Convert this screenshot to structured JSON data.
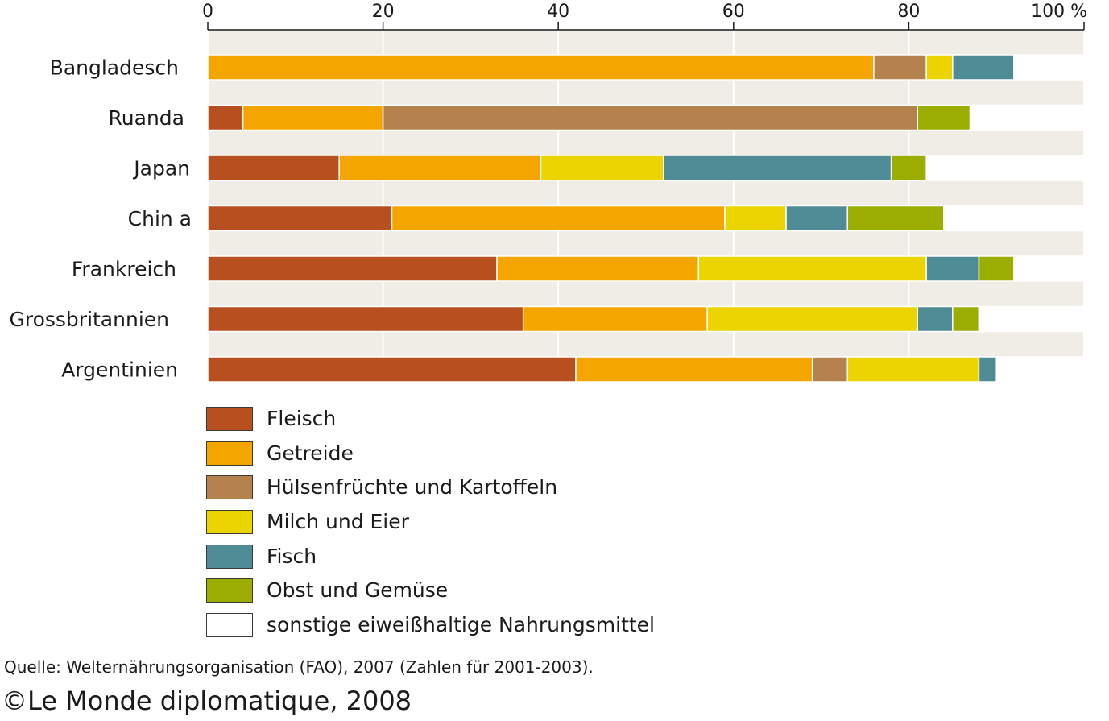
{
  "chart_data": {
    "type": "bar",
    "orientation": "horizontal",
    "stacked": true,
    "categories": [
      "Bangladesch",
      "Ruanda",
      "Japan",
      "Chin a",
      "Frankreich",
      "Grossbritannien",
      "Argentinien"
    ],
    "xlim": [
      0,
      100
    ],
    "xticks": [
      "0",
      "20",
      "40",
      "60",
      "80",
      "100 %"
    ],
    "series": [
      {
        "name": "Fleisch",
        "color": "#b84f1e",
        "values": [
          0,
          4,
          15,
          21,
          33,
          36,
          42
        ]
      },
      {
        "name": "Getreide",
        "color": "#f5a500",
        "values": [
          76,
          16,
          23,
          38,
          23,
          21,
          27
        ]
      },
      {
        "name": "Hülsenfrüchte und Kartoffeln",
        "color": "#b5824d",
        "values": [
          6,
          61,
          0,
          0,
          0,
          0,
          4
        ]
      },
      {
        "name": "Milch und Eier",
        "color": "#ecd400",
        "values": [
          3,
          0,
          14,
          7,
          26,
          24,
          15
        ]
      },
      {
        "name": "Fisch",
        "color": "#4f8b94",
        "values": [
          7,
          0,
          26,
          7,
          6,
          4,
          2
        ]
      },
      {
        "name": "Obst und Gemüse",
        "color": "#9aad00",
        "values": [
          0,
          6,
          4,
          11,
          4,
          3,
          0
        ]
      },
      {
        "name": "sonstige eiweißhaltige Nahrungsmittel",
        "color": "#ffffff",
        "values": [
          8,
          13,
          18,
          16,
          8,
          12,
          10
        ]
      }
    ],
    "grid": true,
    "legend_position": "bottom-left"
  },
  "source": "Quelle: Welternährungsorganisation (FAO), 2007 (Zahlen für 2001-2003).",
  "copyright": "©Le Monde diplomatique, 2008"
}
